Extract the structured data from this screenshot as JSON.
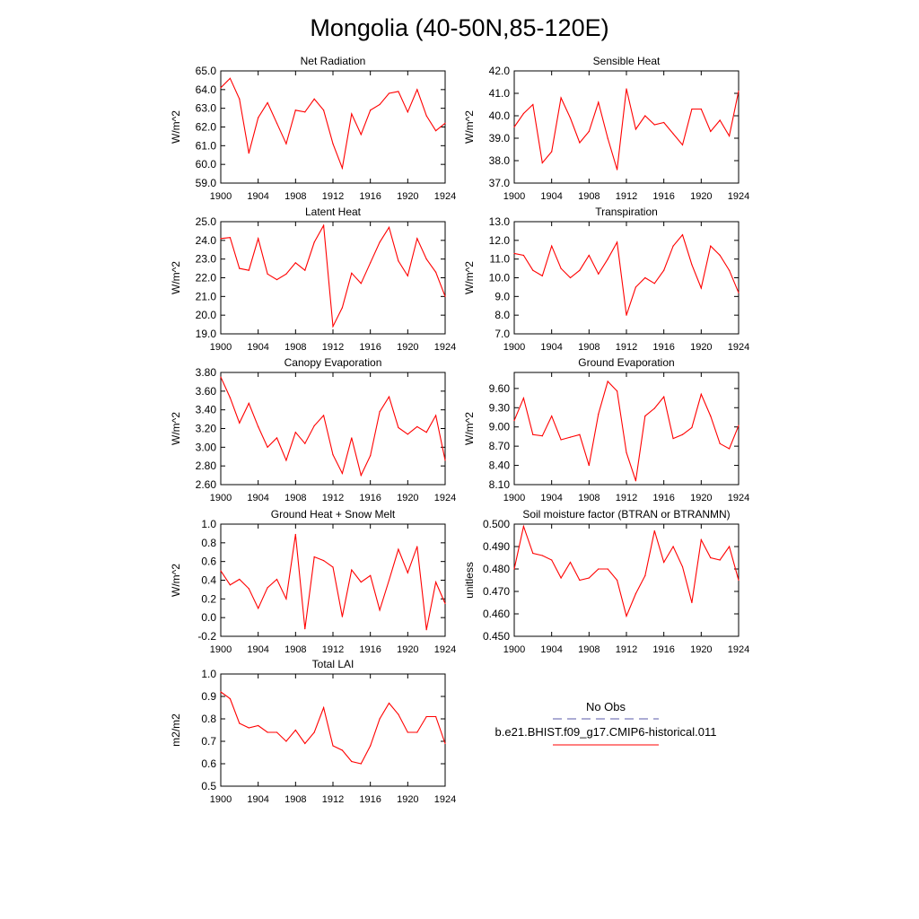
{
  "page_title": "Mongolia (40-50N,85-120E)",
  "line_color": "#ff0000",
  "obs_line_color": "#5a5aa8",
  "legend": {
    "obs_label": "No Obs",
    "model_label": "b.e21.BHIST.f09_g17.CMIP6-historical.011"
  },
  "chart_data": [
    {
      "type": "line",
      "title": "Net Radiation",
      "ylabel": "W/m^2",
      "x": [
        1900,
        1901,
        1902,
        1903,
        1904,
        1905,
        1906,
        1907,
        1908,
        1909,
        1910,
        1911,
        1912,
        1913,
        1914,
        1915,
        1916,
        1917,
        1918,
        1919,
        1920,
        1921,
        1922,
        1923,
        1924
      ],
      "values": [
        64.1,
        64.6,
        63.5,
        60.6,
        62.5,
        63.3,
        62.2,
        61.1,
        62.9,
        62.8,
        63.5,
        62.9,
        61.1,
        59.8,
        62.7,
        61.6,
        62.9,
        63.2,
        63.8,
        63.9,
        62.8,
        64.0,
        62.6,
        61.8,
        62.2
      ],
      "xticks": [
        1900,
        1904,
        1908,
        1912,
        1916,
        1920,
        1924
      ],
      "xlim": [
        1900,
        1924
      ],
      "ylim": [
        59.0,
        65.0
      ],
      "yticks": [
        59.0,
        60.0,
        61.0,
        62.0,
        63.0,
        64.0,
        65.0
      ],
      "ytick_labels": [
        "59.0",
        "60.0",
        "61.0",
        "62.0",
        "63.0",
        "64.0",
        "65.0"
      ]
    },
    {
      "type": "line",
      "title": "Sensible Heat",
      "ylabel": "W/m^2",
      "x": [
        1900,
        1901,
        1902,
        1903,
        1904,
        1905,
        1906,
        1907,
        1908,
        1909,
        1910,
        1911,
        1912,
        1913,
        1914,
        1915,
        1916,
        1917,
        1918,
        1919,
        1920,
        1921,
        1922,
        1923,
        1924
      ],
      "values": [
        39.5,
        40.1,
        40.5,
        37.9,
        38.4,
        40.8,
        39.9,
        38.8,
        39.3,
        40.6,
        39.0,
        37.6,
        41.2,
        39.4,
        40.0,
        39.6,
        39.7,
        39.2,
        38.7,
        40.3,
        40.3,
        39.3,
        39.8,
        39.1,
        41.1
      ],
      "xticks": [
        1900,
        1904,
        1908,
        1912,
        1916,
        1920,
        1924
      ],
      "xlim": [
        1900,
        1924
      ],
      "ylim": [
        37.0,
        42.0
      ],
      "yticks": [
        37.0,
        38.0,
        39.0,
        40.0,
        41.0,
        42.0
      ],
      "ytick_labels": [
        "37.0",
        "38.0",
        "39.0",
        "40.0",
        "41.0",
        "42.0"
      ]
    },
    {
      "type": "line",
      "title": "Latent Heat",
      "ylabel": "W/m^2",
      "x": [
        1900,
        1901,
        1902,
        1903,
        1904,
        1905,
        1906,
        1907,
        1908,
        1909,
        1910,
        1911,
        1912,
        1913,
        1914,
        1915,
        1916,
        1917,
        1918,
        1919,
        1920,
        1921,
        1922,
        1923,
        1924
      ],
      "values": [
        24.1,
        24.15,
        22.5,
        22.4,
        24.1,
        22.2,
        21.9,
        22.2,
        22.8,
        22.4,
        23.9,
        24.8,
        19.4,
        20.4,
        22.25,
        21.7,
        22.8,
        23.9,
        24.7,
        22.9,
        22.1,
        24.1,
        23.0,
        22.3,
        21.0
      ],
      "xticks": [
        1900,
        1904,
        1908,
        1912,
        1916,
        1920,
        1924
      ],
      "xlim": [
        1900,
        1924
      ],
      "ylim": [
        19.0,
        25.0
      ],
      "yticks": [
        19.0,
        20.0,
        21.0,
        22.0,
        23.0,
        24.0,
        25.0
      ],
      "ytick_labels": [
        "19.0",
        "20.0",
        "21.0",
        "22.0",
        "23.0",
        "24.0",
        "25.0"
      ]
    },
    {
      "type": "line",
      "title": "Transpiration",
      "ylabel": "W/m^2",
      "x": [
        1900,
        1901,
        1902,
        1903,
        1904,
        1905,
        1906,
        1907,
        1908,
        1909,
        1910,
        1911,
        1912,
        1913,
        1914,
        1915,
        1916,
        1917,
        1918,
        1919,
        1920,
        1921,
        1922,
        1923,
        1924
      ],
      "values": [
        11.3,
        11.2,
        10.4,
        10.1,
        11.7,
        10.5,
        10.0,
        10.4,
        11.2,
        10.2,
        11.0,
        11.9,
        8.0,
        9.5,
        10.0,
        9.7,
        10.4,
        11.7,
        12.3,
        10.7,
        9.45,
        11.7,
        11.2,
        10.4,
        9.2
      ],
      "xticks": [
        1900,
        1904,
        1908,
        1912,
        1916,
        1920,
        1924
      ],
      "xlim": [
        1900,
        1924
      ],
      "ylim": [
        7.0,
        13.0
      ],
      "yticks": [
        7.0,
        8.0,
        9.0,
        10.0,
        11.0,
        12.0,
        13.0
      ],
      "ytick_labels": [
        "7.0",
        "8.0",
        "9.0",
        "10.0",
        "11.0",
        "12.0",
        "13.0"
      ]
    },
    {
      "type": "line",
      "title": "Canopy Evaporation",
      "ylabel": "W/m^2",
      "x": [
        1900,
        1901,
        1902,
        1903,
        1904,
        1905,
        1906,
        1907,
        1908,
        1909,
        1910,
        1911,
        1912,
        1913,
        1914,
        1915,
        1916,
        1917,
        1918,
        1919,
        1920,
        1921,
        1922,
        1923,
        1924
      ],
      "values": [
        3.75,
        3.53,
        3.26,
        3.47,
        3.22,
        3.0,
        3.1,
        2.86,
        3.16,
        3.04,
        3.23,
        3.34,
        2.92,
        2.72,
        3.1,
        2.7,
        2.91,
        3.38,
        3.54,
        3.21,
        3.14,
        3.22,
        3.16,
        3.34,
        2.86
      ],
      "xticks": [
        1900,
        1904,
        1908,
        1912,
        1916,
        1920,
        1924
      ],
      "xlim": [
        1900,
        1924
      ],
      "ylim": [
        2.6,
        3.8
      ],
      "yticks": [
        2.6,
        2.8,
        3.0,
        3.2,
        3.4,
        3.6,
        3.8
      ],
      "ytick_labels": [
        "2.60",
        "2.80",
        "3.00",
        "3.20",
        "3.40",
        "3.60",
        "3.80"
      ]
    },
    {
      "type": "line",
      "title": "Ground Evaporation",
      "ylabel": "W/m^2",
      "x": [
        1900,
        1901,
        1902,
        1903,
        1904,
        1905,
        1906,
        1907,
        1908,
        1909,
        1910,
        1911,
        1912,
        1913,
        1914,
        1915,
        1916,
        1917,
        1918,
        1919,
        1920,
        1921,
        1922,
        1923,
        1924
      ],
      "values": [
        9.1,
        9.45,
        8.88,
        8.86,
        9.17,
        8.8,
        8.84,
        8.88,
        8.4,
        9.2,
        9.71,
        9.56,
        8.6,
        8.16,
        9.17,
        9.29,
        9.47,
        8.82,
        8.88,
        8.99,
        9.51,
        9.17,
        8.74,
        8.66,
        9.02
      ],
      "xticks": [
        1900,
        1904,
        1908,
        1912,
        1916,
        1920,
        1924
      ],
      "xlim": [
        1900,
        1924
      ],
      "ylim": [
        8.1,
        9.85
      ],
      "yticks": [
        8.1,
        8.4,
        8.7,
        9.0,
        9.3,
        9.6
      ],
      "ytick_labels": [
        "8.10",
        "8.40",
        "8.70",
        "9.00",
        "9.30",
        "9.60"
      ]
    },
    {
      "type": "line",
      "title": "Ground Heat + Snow Melt",
      "ylabel": "W/m^2",
      "x": [
        1900,
        1901,
        1902,
        1903,
        1904,
        1905,
        1906,
        1907,
        1908,
        1909,
        1910,
        1911,
        1912,
        1913,
        1914,
        1915,
        1916,
        1917,
        1918,
        1919,
        1920,
        1921,
        1922,
        1923,
        1924
      ],
      "values": [
        0.5,
        0.35,
        0.41,
        0.31,
        0.1,
        0.32,
        0.41,
        0.2,
        0.89,
        -0.12,
        0.65,
        0.61,
        0.54,
        0.01,
        0.51,
        0.38,
        0.45,
        0.08,
        0.4,
        0.73,
        0.48,
        0.76,
        -0.13,
        0.38,
        0.15
      ],
      "xticks": [
        1900,
        1904,
        1908,
        1912,
        1916,
        1920,
        1924
      ],
      "xlim": [
        1900,
        1924
      ],
      "ylim": [
        -0.2,
        1.0
      ],
      "yticks": [
        -0.2,
        0.0,
        0.2,
        0.4,
        0.6,
        0.8,
        1.0
      ],
      "ytick_labels": [
        "-0.2",
        "0.0",
        "0.2",
        "0.4",
        "0.6",
        "0.8",
        "1.0"
      ]
    },
    {
      "type": "line",
      "title": "Soil moisture factor (BTRAN or BTRANMN)",
      "ylabel": "unitless",
      "x": [
        1900,
        1901,
        1902,
        1903,
        1904,
        1905,
        1906,
        1907,
        1908,
        1909,
        1910,
        1911,
        1912,
        1913,
        1914,
        1915,
        1916,
        1917,
        1918,
        1919,
        1920,
        1921,
        1922,
        1923,
        1924
      ],
      "values": [
        0.48,
        0.499,
        0.487,
        0.486,
        0.484,
        0.476,
        0.483,
        0.475,
        0.476,
        0.48,
        0.48,
        0.475,
        0.459,
        0.469,
        0.477,
        0.497,
        0.483,
        0.49,
        0.481,
        0.465,
        0.493,
        0.485,
        0.484,
        0.49,
        0.475
      ],
      "xticks": [
        1900,
        1904,
        1908,
        1912,
        1916,
        1920,
        1924
      ],
      "xlim": [
        1900,
        1924
      ],
      "ylim": [
        0.45,
        0.5
      ],
      "yticks": [
        0.45,
        0.46,
        0.47,
        0.48,
        0.49,
        0.5
      ],
      "ytick_labels": [
        "0.450",
        "0.460",
        "0.470",
        "0.480",
        "0.490",
        "0.500"
      ]
    },
    {
      "type": "line",
      "title": "Total LAI",
      "ylabel": "m2/m2",
      "x": [
        1900,
        1901,
        1902,
        1903,
        1904,
        1905,
        1906,
        1907,
        1908,
        1909,
        1910,
        1911,
        1912,
        1913,
        1914,
        1915,
        1916,
        1917,
        1918,
        1919,
        1920,
        1921,
        1922,
        1923,
        1924
      ],
      "values": [
        0.92,
        0.89,
        0.78,
        0.76,
        0.77,
        0.74,
        0.74,
        0.7,
        0.75,
        0.69,
        0.74,
        0.85,
        0.68,
        0.66,
        0.61,
        0.6,
        0.68,
        0.8,
        0.87,
        0.82,
        0.74,
        0.74,
        0.81,
        0.81,
        0.69
      ],
      "xticks": [
        1900,
        1904,
        1908,
        1912,
        1916,
        1920,
        1924
      ],
      "xlim": [
        1900,
        1924
      ],
      "ylim": [
        0.5,
        1.0
      ],
      "yticks": [
        0.5,
        0.6,
        0.7,
        0.8,
        0.9,
        1.0
      ],
      "ytick_labels": [
        "0.5",
        "0.6",
        "0.7",
        "0.8",
        "0.9",
        "1.0"
      ]
    }
  ]
}
